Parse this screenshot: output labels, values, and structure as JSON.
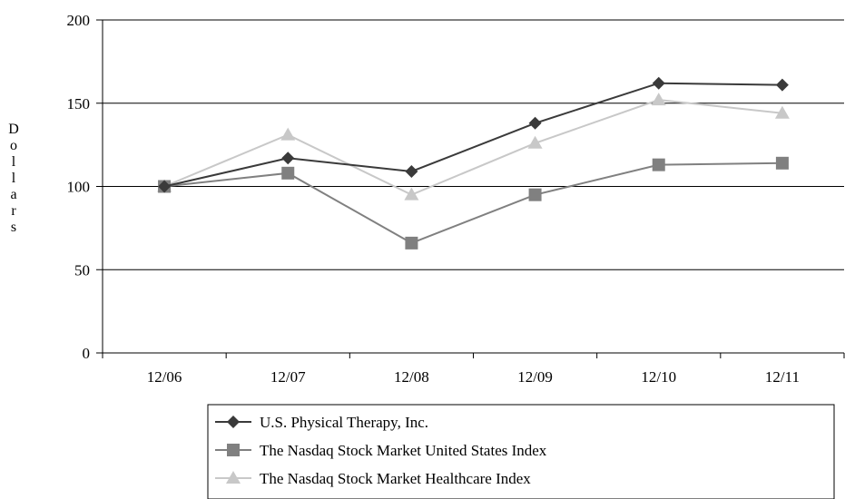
{
  "chart_data": {
    "type": "line",
    "title": "",
    "xlabel": "",
    "ylabel": "Dollars",
    "categories": [
      "12/06",
      "12/07",
      "12/08",
      "12/09",
      "12/10",
      "12/11"
    ],
    "ylim": [
      0,
      200
    ],
    "yticks": [
      0,
      50,
      100,
      150,
      200
    ],
    "grid": true,
    "legend_position": "bottom-left",
    "series": [
      {
        "name": "U.S. Physical Therapy, Inc.",
        "values": [
          100,
          117,
          109,
          138,
          162,
          161
        ],
        "color": "#3a3a3a",
        "marker": "diamond"
      },
      {
        "name": "The Nasdaq Stock Market United States Index",
        "values": [
          100,
          108,
          66,
          95,
          113,
          114
        ],
        "color": "#808080",
        "marker": "square"
      },
      {
        "name": "The Nasdaq Stock Market Healthcare Index",
        "values": [
          100,
          131,
          95,
          126,
          152,
          144
        ],
        "color": "#c8c8c8",
        "marker": "triangle"
      }
    ]
  }
}
